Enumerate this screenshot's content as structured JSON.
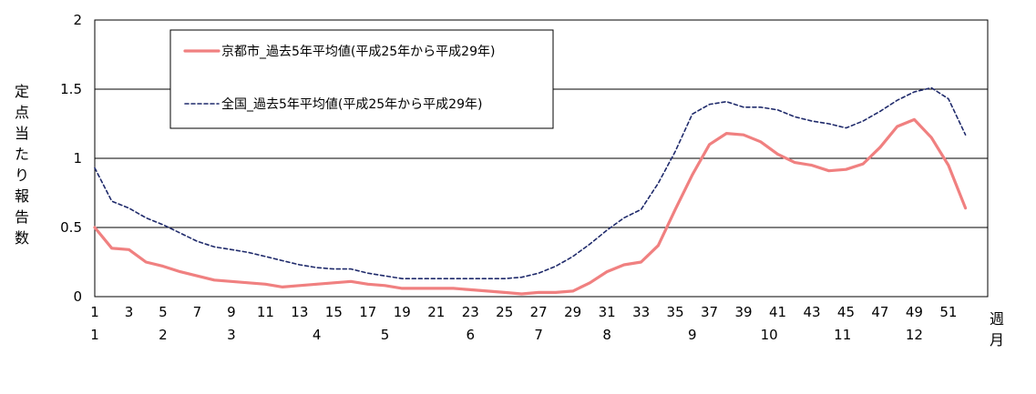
{
  "chart_data": {
    "type": "line",
    "ylabel": "定点当たり報告数",
    "xlabel": "週月",
    "ylim": [
      0,
      2
    ],
    "yticks": [
      "0",
      "0.5",
      "1",
      "1.5",
      "2"
    ],
    "grid": "horizontal",
    "legend_position": "top-left",
    "x": [
      1,
      2,
      3,
      4,
      5,
      6,
      7,
      8,
      9,
      10,
      11,
      12,
      13,
      14,
      15,
      16,
      17,
      18,
      19,
      20,
      21,
      22,
      23,
      24,
      25,
      26,
      27,
      28,
      29,
      30,
      31,
      32,
      33,
      34,
      35,
      36,
      37,
      38,
      39,
      40,
      41,
      42,
      43,
      44,
      45,
      46,
      47,
      48,
      49,
      50,
      51,
      52
    ],
    "week_tick_labels": [
      "1",
      "3",
      "5",
      "7",
      "9",
      "11",
      "13",
      "15",
      "17",
      "19",
      "21",
      "23",
      "25",
      "27",
      "29",
      "31",
      "33",
      "35",
      "37",
      "39",
      "41",
      "43",
      "45",
      "47",
      "49",
      "51"
    ],
    "month_labels": [
      {
        "label": "1",
        "week": 1
      },
      {
        "label": "2",
        "week": 5
      },
      {
        "label": "3",
        "week": 9
      },
      {
        "label": "4",
        "week": 14
      },
      {
        "label": "5",
        "week": 18
      },
      {
        "label": "6",
        "week": 23
      },
      {
        "label": "7",
        "week": 27
      },
      {
        "label": "8",
        "week": 31
      },
      {
        "label": "9",
        "week": 36
      },
      {
        "label": "10",
        "week": 40.5
      },
      {
        "label": "11",
        "week": 44.8
      },
      {
        "label": "12",
        "week": 49
      }
    ],
    "series": [
      {
        "name": "京都市_過去5年平均値(平成25年から平成29年)",
        "color": "#f08080",
        "style": "solid",
        "values": [
          0.5,
          0.35,
          0.34,
          0.25,
          0.22,
          0.18,
          0.15,
          0.12,
          0.11,
          0.1,
          0.09,
          0.07,
          0.08,
          0.09,
          0.1,
          0.11,
          0.09,
          0.08,
          0.06,
          0.06,
          0.06,
          0.06,
          0.05,
          0.04,
          0.03,
          0.02,
          0.03,
          0.03,
          0.04,
          0.1,
          0.18,
          0.23,
          0.25,
          0.37,
          0.63,
          0.88,
          1.1,
          1.18,
          1.17,
          1.12,
          1.03,
          0.97,
          0.95,
          0.91,
          0.92,
          0.96,
          1.08,
          1.23,
          1.28,
          1.15,
          0.95,
          0.64
        ]
      },
      {
        "name": "全国_過去5年平均値(平成25年から平成29年)",
        "color": "#1f2a6b",
        "style": "dashed",
        "values": [
          0.93,
          0.69,
          0.64,
          0.57,
          0.52,
          0.46,
          0.4,
          0.36,
          0.34,
          0.32,
          0.29,
          0.26,
          0.23,
          0.21,
          0.2,
          0.2,
          0.17,
          0.15,
          0.13,
          0.13,
          0.13,
          0.13,
          0.13,
          0.13,
          0.13,
          0.14,
          0.17,
          0.22,
          0.29,
          0.38,
          0.48,
          0.57,
          0.63,
          0.82,
          1.05,
          1.32,
          1.39,
          1.41,
          1.37,
          1.37,
          1.35,
          1.3,
          1.27,
          1.25,
          1.22,
          1.27,
          1.34,
          1.42,
          1.48,
          1.51,
          1.43,
          1.17
        ]
      }
    ]
  }
}
